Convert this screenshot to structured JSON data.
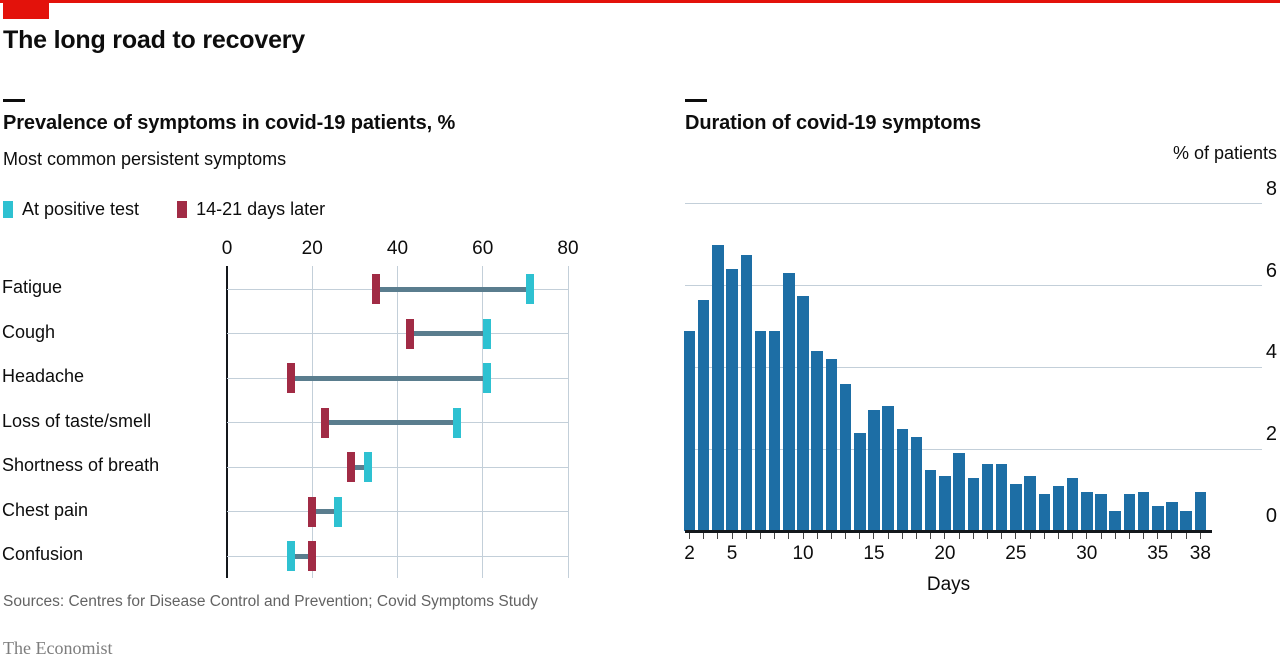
{
  "header": {
    "title": "The long road to recovery"
  },
  "footer": {
    "sources": "Sources: Centres for Disease Control and Prevention; Covid Symptoms Study",
    "brand": "The Economist"
  },
  "colors": {
    "accent_red": "#E3120B",
    "cyan": "#2EC1D1",
    "crimson": "#A12B45",
    "bar_blue": "#1D6EA5",
    "connector": "#5A7D8E",
    "gridline": "#C3CFD9",
    "axis_dark": "#14181C",
    "tick": "#444444",
    "text": "#0D0D0D",
    "muted": "#636363"
  },
  "chart_data": [
    {
      "type": "dumbbell",
      "title": "Prevalence of symptoms in covid-19 patients, %",
      "subtitle": "Most common persistent symptoms",
      "legend": [
        {
          "label": "At positive test",
          "color_key": "cyan"
        },
        {
          "label": "14-21 days later",
          "color_key": "crimson"
        }
      ],
      "x_ticks": [
        0,
        20,
        40,
        60,
        80
      ],
      "xlim": [
        0,
        80
      ],
      "grid": true,
      "categories": [
        "Fatigue",
        "Cough",
        "Headache",
        "Loss of taste/smell",
        "Shortness of breath",
        "Chest pain",
        "Confusion"
      ],
      "series": [
        {
          "name": "At positive test",
          "values": [
            71,
            61,
            61,
            54,
            33,
            26,
            15
          ]
        },
        {
          "name": "14-21 days later",
          "values": [
            35,
            43,
            15,
            23,
            29,
            20,
            20
          ]
        }
      ]
    },
    {
      "type": "bar",
      "title": "Duration of covid-19 symptoms",
      "ylabel": "% of patients",
      "xlabel": "Days",
      "ylim": [
        0,
        8
      ],
      "y_ticks": [
        8,
        6,
        4,
        2,
        0
      ],
      "grid": true,
      "x_tick_labels": [
        2,
        5,
        10,
        15,
        20,
        25,
        30,
        35,
        38
      ],
      "x": [
        2,
        3,
        4,
        5,
        6,
        7,
        8,
        9,
        10,
        11,
        12,
        13,
        14,
        15,
        16,
        17,
        18,
        19,
        20,
        21,
        22,
        23,
        24,
        25,
        26,
        27,
        28,
        29,
        30,
        31,
        32,
        33,
        34,
        35,
        36,
        37,
        38
      ],
      "values": [
        4.9,
        5.65,
        7.0,
        6.4,
        6.75,
        4.9,
        4.9,
        6.3,
        5.75,
        4.4,
        4.2,
        3.6,
        2.4,
        2.95,
        3.05,
        2.5,
        2.3,
        1.5,
        1.35,
        1.9,
        1.3,
        1.65,
        1.65,
        1.15,
        1.35,
        0.9,
        1.1,
        1.3,
        0.95,
        0.9,
        0.5,
        0.9,
        0.95,
        0.6,
        0.7,
        0.5,
        0.95
      ]
    }
  ]
}
